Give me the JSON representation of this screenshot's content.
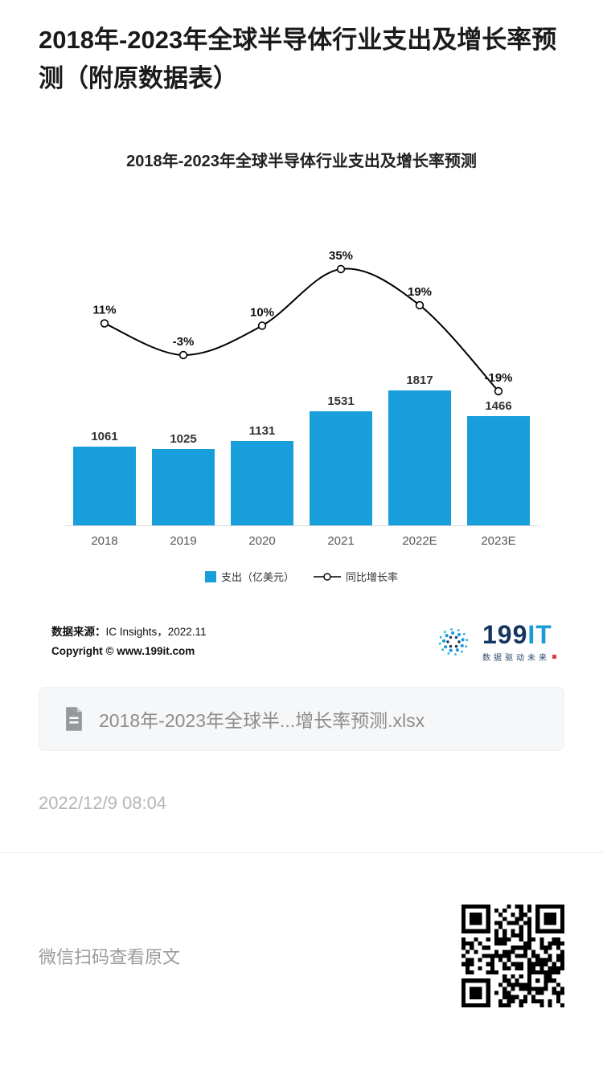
{
  "page": {
    "title": "2018年-2023年全球半导体行业支出及增长率预测（附原数据表）",
    "timestamp": "2022/12/9 08:04",
    "footer_text": "微信扫码查看原文"
  },
  "chart_data": {
    "type": "bar+line",
    "title": "2018年-2023年全球半导体行业支出及增长率预测",
    "categories": [
      "2018",
      "2019",
      "2020",
      "2021",
      "2022E",
      "2023E"
    ],
    "bar_series": {
      "name": "支出（亿美元）",
      "values": [
        1061,
        1025,
        1131,
        1531,
        1817,
        1466
      ],
      "color": "#189fdb"
    },
    "line_series": {
      "name": "同比增长率",
      "values_percent": [
        11,
        -3,
        10,
        35,
        19,
        -19
      ],
      "labels": [
        "11%",
        "-3%",
        "10%",
        "35%",
        "19%",
        "-19%"
      ],
      "color": "#000000"
    },
    "legend_position": "bottom",
    "grid": false,
    "value_axis_visible": false,
    "data_labels": true
  },
  "source": {
    "line1_label": "数据来源：",
    "line1_value": "IC Insights，2022.11",
    "line2": "Copyright © www.199it.com"
  },
  "logo": {
    "text_199": "199",
    "text_it": "IT",
    "tagline": "数据驱动未来"
  },
  "attachment": {
    "filename": "2018年-2023年全球半...增长率预测.xlsx"
  }
}
